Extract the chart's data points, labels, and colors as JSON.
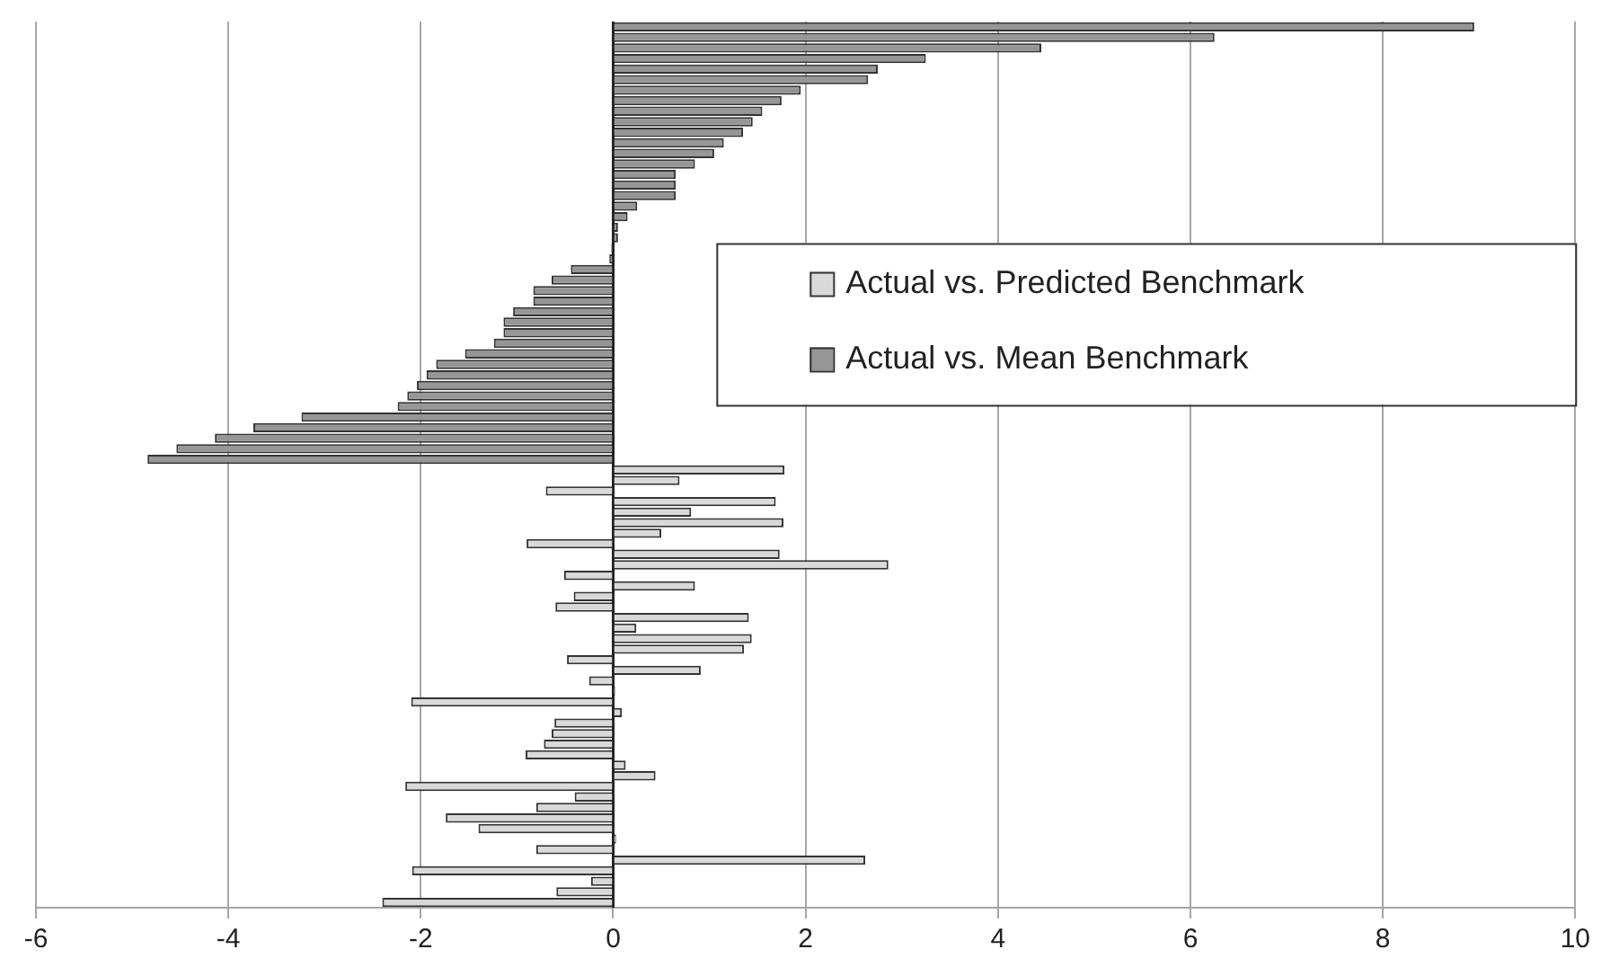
{
  "chart_data": {
    "type": "bar",
    "orientation": "horizontal",
    "categories": [
      null,
      null,
      null,
      null,
      null,
      null,
      null,
      null,
      null,
      null,
      null,
      null,
      null,
      null,
      null,
      null,
      null,
      null,
      null,
      null,
      null,
      null,
      null,
      null,
      null,
      null,
      null,
      null,
      null,
      null,
      null,
      null,
      null,
      null,
      null,
      null,
      null,
      null,
      null,
      null,
      null,
      null,
      null,
      null,
      null,
      null,
      null,
      null,
      null,
      null,
      null,
      null,
      null,
      null,
      null,
      null,
      null,
      null,
      null,
      null,
      null,
      null,
      null,
      null,
      null,
      null,
      null,
      null,
      null,
      null,
      null,
      null,
      null,
      null,
      null,
      null,
      null,
      null,
      null,
      null,
      null,
      null,
      null,
      null
    ],
    "series": [
      {
        "name": "Actual vs. Predicted Benchmark",
        "color": "#d9d9d9",
        "values": [
          null,
          null,
          null,
          null,
          null,
          null,
          null,
          null,
          null,
          null,
          null,
          null,
          null,
          null,
          null,
          null,
          null,
          null,
          null,
          null,
          null,
          null,
          null,
          null,
          null,
          null,
          null,
          null,
          null,
          null,
          null,
          null,
          null,
          null,
          null,
          null,
          null,
          null,
          null,
          null,
          null,
          null,
          1.78,
          0.69,
          -0.7,
          1.69,
          0.81,
          1.77,
          0.5,
          -0.9,
          1.73,
          2.86,
          -0.51,
          0.85,
          -0.41,
          -0.6,
          1.41,
          0.24,
          1.44,
          1.36,
          -0.48,
          0.91,
          -0.25,
          0.02,
          -2.1,
          0.09,
          -0.61,
          -0.64,
          -0.72,
          -0.91,
          0.13,
          0.44,
          -2.16,
          -0.4,
          -0.8,
          -1.74,
          -1.4,
          0.03,
          -0.8,
          2.62,
          -2.09,
          -0.23,
          -0.59,
          -2.4
        ]
      },
      {
        "name": "Actual vs. Mean Benchmark",
        "color": "#969696",
        "values": [
          8.95,
          6.25,
          4.45,
          3.25,
          2.75,
          2.65,
          1.95,
          1.75,
          1.55,
          1.45,
          1.35,
          1.15,
          1.05,
          0.85,
          0.65,
          0.65,
          0.65,
          0.25,
          0.15,
          0.05,
          0.05,
          -0.02,
          -0.04,
          -0.44,
          -0.64,
          -0.83,
          -0.83,
          -1.04,
          -1.14,
          -1.14,
          -1.24,
          -1.54,
          -1.84,
          -1.94,
          -2.04,
          -2.14,
          -2.24,
          -3.24,
          -3.74,
          -4.14,
          -4.54,
          -4.84,
          null,
          null,
          null,
          null,
          null,
          null,
          null,
          null,
          null,
          null,
          null,
          null,
          null,
          null,
          null,
          null,
          null,
          null,
          null,
          null,
          null,
          null,
          null,
          null,
          null,
          null,
          null,
          null,
          null,
          null,
          null,
          null,
          null,
          null,
          null,
          null,
          null,
          null,
          null,
          null,
          null,
          null
        ]
      }
    ],
    "xlim": [
      -6,
      10
    ],
    "xticks": [
      -6,
      -4,
      -2,
      0,
      2,
      4,
      6,
      8,
      10
    ],
    "grid": "x",
    "legend": "right",
    "tick_labels": "x"
  }
}
